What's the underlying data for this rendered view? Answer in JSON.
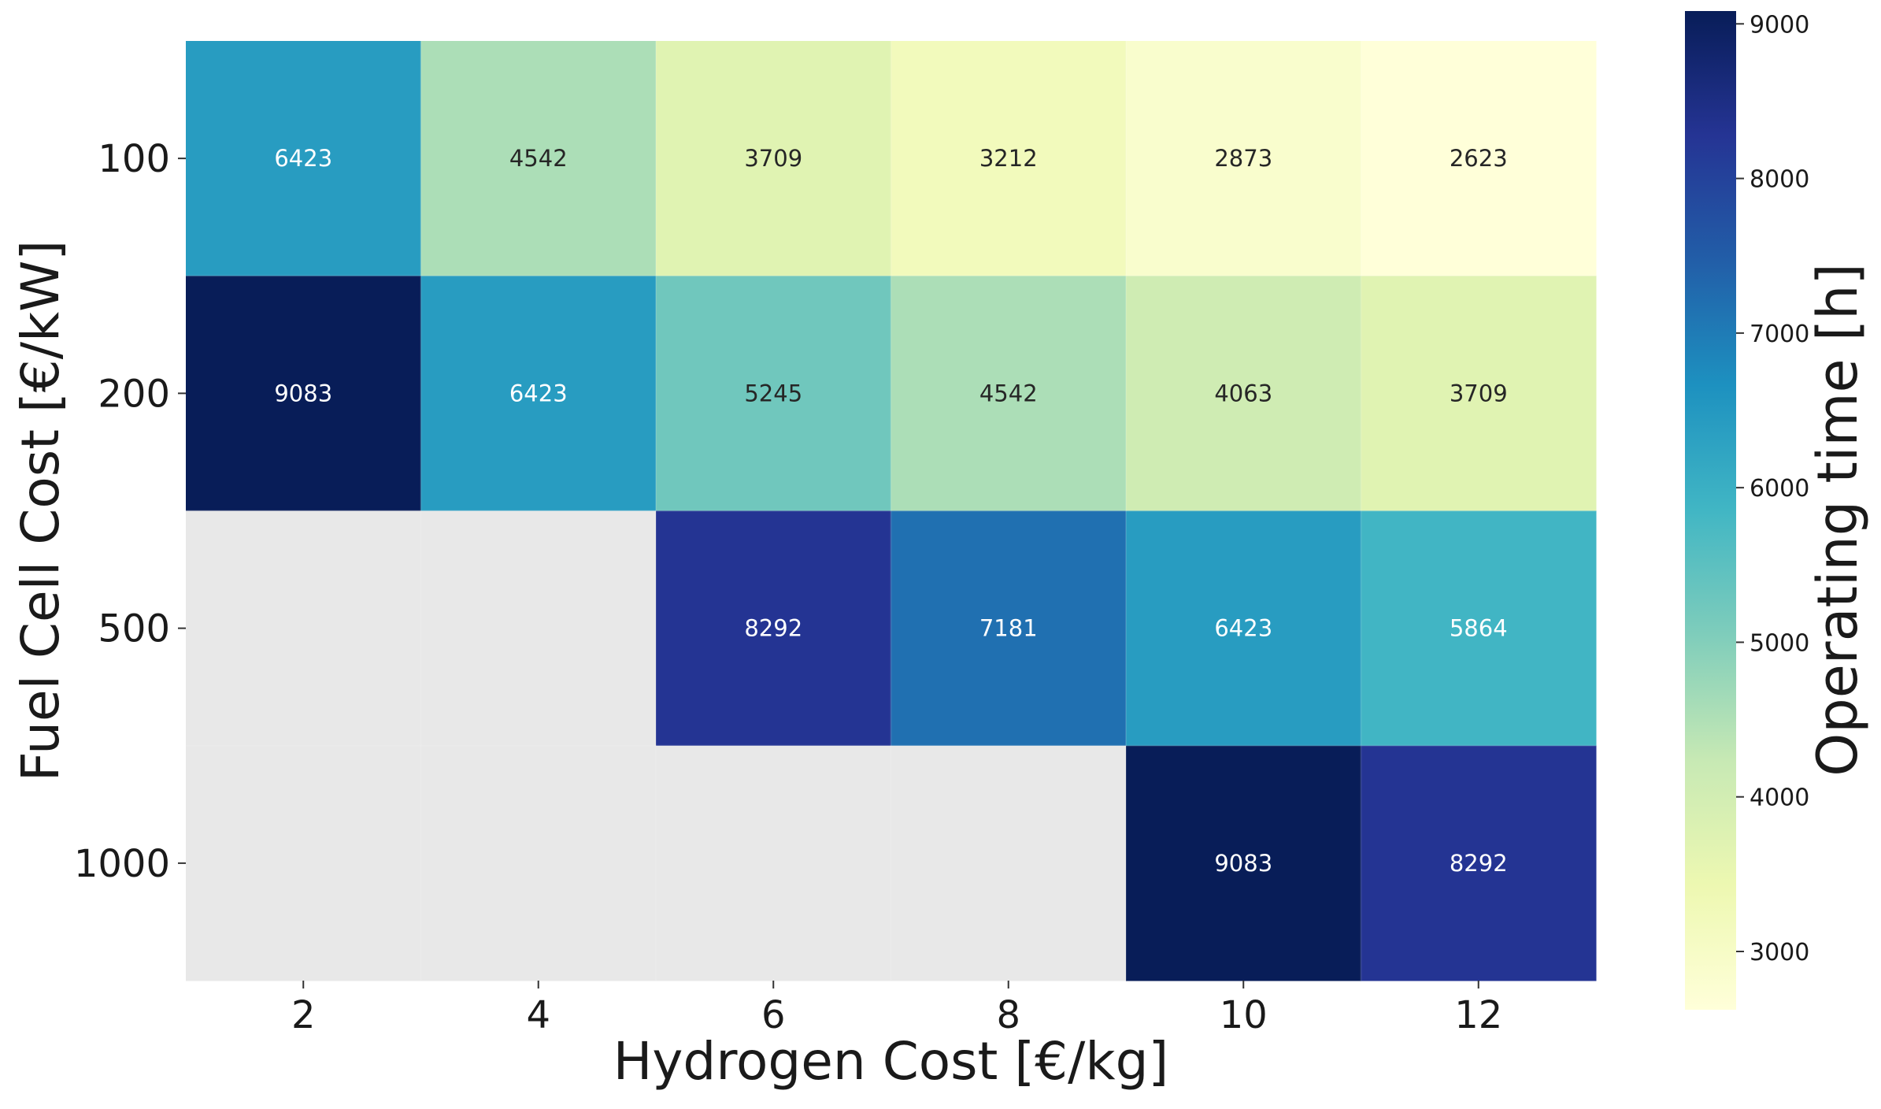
{
  "chart_data": {
    "type": "heatmap",
    "title": "",
    "xlabel": "Hydrogen Cost [€/kg]",
    "ylabel": "Fuel Cell Cost [€/kW]",
    "x_categories": [
      "2",
      "4",
      "6",
      "8",
      "10",
      "12"
    ],
    "y_categories": [
      "100",
      "200",
      "500",
      "1000"
    ],
    "values": [
      [
        6423,
        4542,
        3709,
        3212,
        2873,
        2623
      ],
      [
        9083,
        6423,
        5245,
        4542,
        4063,
        3709
      ],
      [
        null,
        null,
        8292,
        7181,
        6423,
        5864
      ],
      [
        null,
        null,
        null,
        null,
        9083,
        8292
      ]
    ],
    "missing_color": "#e8e8e8",
    "colormap": "YlGnBu",
    "colorbar": {
      "label": "Operating time [h]",
      "range": [
        2623,
        9083
      ],
      "ticks": [
        3000,
        4000,
        5000,
        6000,
        7000,
        8000,
        9000
      ],
      "tick_labels": [
        "3000",
        "4000",
        "5000",
        "6000",
        "7000",
        "8000",
        "9000"
      ]
    },
    "colormap_stops": [
      "#ffffd9",
      "#edf8b1",
      "#c7e9b4",
      "#7fcdbb",
      "#41b6c4",
      "#1d91c0",
      "#225ea8",
      "#253494",
      "#081d58"
    ],
    "light_text_color": "#ffffff",
    "dark_text_color": "#262626"
  }
}
